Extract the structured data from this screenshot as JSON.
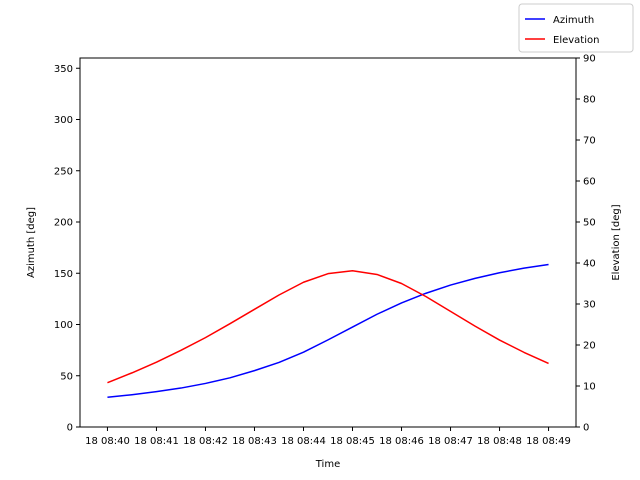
{
  "chart_data": {
    "type": "line",
    "xlabel": "Time",
    "ylabel_left": "Azimuth [deg]",
    "ylabel_right": "Elevation [deg]",
    "xticks": [
      "18 08:40",
      "18 08:41",
      "18 08:42",
      "18 08:43",
      "18 08:44",
      "18 08:45",
      "18 08:46",
      "18 08:47",
      "18 08:48",
      "18 08:49"
    ],
    "xlim": [
      -0.56,
      9.56
    ],
    "ylim_left": [
      0,
      360
    ],
    "ylim_right": [
      0,
      90
    ],
    "yticks_left": [
      0,
      50,
      100,
      150,
      200,
      250,
      300,
      350
    ],
    "yticks_right": [
      0,
      10,
      20,
      30,
      40,
      50,
      60,
      70,
      80,
      90
    ],
    "grid": false,
    "legend": "top-right",
    "x": [
      0,
      0.5,
      1,
      1.5,
      2,
      2.5,
      3,
      3.5,
      4,
      4.5,
      5,
      5.5,
      6,
      6.5,
      7,
      7.5,
      8,
      8.5,
      9
    ],
    "series": [
      {
        "name": "Azimuth",
        "axis": "left",
        "color": "#0000ff",
        "values": [
          29,
          31.5,
          34.5,
          38,
          42.5,
          48,
          55,
          63,
          73,
          85,
          97.5,
          110,
          121,
          130.5,
          138.5,
          145,
          150.5,
          155,
          158.5
        ]
      },
      {
        "name": "Elevation",
        "axis": "right",
        "color": "#ff0000",
        "values": [
          10.8,
          13.2,
          15.8,
          18.7,
          21.8,
          25.2,
          28.7,
          32.2,
          35.3,
          37.4,
          38.1,
          37.2,
          35.0,
          31.8,
          28.2,
          24.6,
          21.2,
          18.2,
          15.5
        ]
      }
    ]
  }
}
